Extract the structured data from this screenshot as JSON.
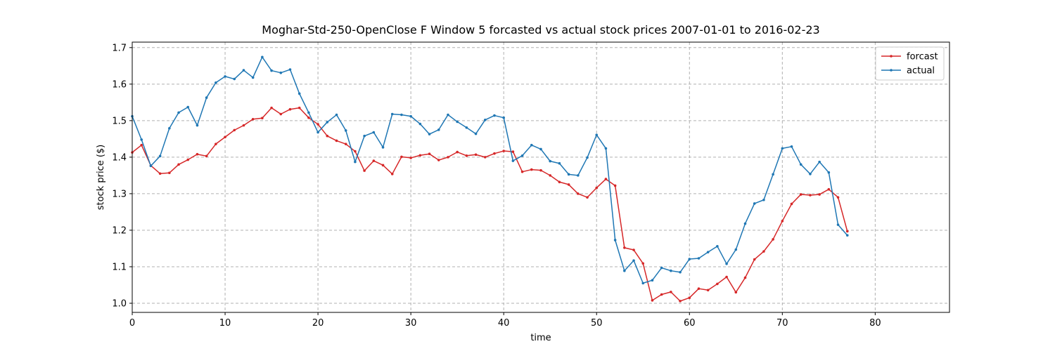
{
  "chart_data": {
    "type": "line",
    "title": "Moghar-Std-250-OpenClose F Window 5 forcasted vs actual stock prices 2007-01-01 to 2016-02-23",
    "xlabel": "time",
    "ylabel": "stock price ($)",
    "xlim": [
      0,
      88
    ],
    "ylim": [
      0.975,
      1.715
    ],
    "xticks": [
      0,
      10,
      20,
      30,
      40,
      50,
      60,
      70,
      80
    ],
    "yticks": [
      1.0,
      1.1,
      1.2,
      1.3,
      1.4,
      1.5,
      1.6,
      1.7
    ],
    "ytick_labels": [
      "1.0",
      "1.1",
      "1.2",
      "1.3",
      "1.4",
      "1.5",
      "1.6",
      "1.7"
    ],
    "grid": true,
    "legend_position": "top-right",
    "x": [
      0,
      1,
      2,
      3,
      4,
      5,
      6,
      7,
      8,
      9,
      10,
      11,
      12,
      13,
      14,
      15,
      16,
      17,
      18,
      19,
      20,
      21,
      22,
      23,
      24,
      25,
      26,
      27,
      28,
      29,
      30,
      31,
      32,
      33,
      34,
      35,
      36,
      37,
      38,
      39,
      40,
      41,
      42,
      43,
      44,
      45,
      46,
      47,
      48,
      49,
      50,
      51,
      52,
      53,
      54,
      55,
      56,
      57,
      58,
      59,
      60,
      61,
      62,
      63,
      64,
      65,
      66,
      67,
      68,
      69,
      70,
      71,
      72,
      73,
      74,
      75,
      76,
      77
    ],
    "series": [
      {
        "name": "forcast",
        "color": "#d62728",
        "values": [
          1.413,
          1.433,
          1.377,
          1.355,
          1.357,
          1.38,
          1.393,
          1.408,
          1.403,
          1.436,
          1.455,
          1.474,
          1.487,
          1.504,
          1.507,
          1.535,
          1.518,
          1.531,
          1.535,
          1.508,
          1.49,
          1.458,
          1.445,
          1.436,
          1.416,
          1.363,
          1.39,
          1.378,
          1.354,
          1.401,
          1.398,
          1.405,
          1.409,
          1.392,
          1.4,
          1.414,
          1.404,
          1.407,
          1.4,
          1.41,
          1.417,
          1.415,
          1.36,
          1.366,
          1.364,
          1.35,
          1.332,
          1.325,
          1.3,
          1.29,
          1.316,
          1.34,
          1.322,
          1.152,
          1.146,
          1.109,
          1.008,
          1.024,
          1.031,
          1.006,
          1.015,
          1.04,
          1.036,
          1.053,
          1.072,
          1.03,
          1.07,
          1.12,
          1.142,
          1.175,
          1.225,
          1.272,
          1.298,
          1.296,
          1.298,
          1.312,
          1.29,
          1.197
        ]
      },
      {
        "name": "actual",
        "color": "#1f77b4",
        "values": [
          1.512,
          1.448,
          1.376,
          1.403,
          1.479,
          1.522,
          1.537,
          1.487,
          1.563,
          1.604,
          1.621,
          1.614,
          1.638,
          1.618,
          1.674,
          1.637,
          1.631,
          1.64,
          1.574,
          1.522,
          1.468,
          1.496,
          1.516,
          1.473,
          1.387,
          1.458,
          1.468,
          1.427,
          1.518,
          1.516,
          1.512,
          1.491,
          1.463,
          1.475,
          1.516,
          1.497,
          1.481,
          1.464,
          1.502,
          1.514,
          1.508,
          1.39,
          1.404,
          1.433,
          1.422,
          1.389,
          1.383,
          1.353,
          1.35,
          1.399,
          1.461,
          1.424,
          1.173,
          1.089,
          1.117,
          1.055,
          1.063,
          1.097,
          1.089,
          1.085,
          1.121,
          1.123,
          1.14,
          1.156,
          1.108,
          1.147,
          1.218,
          1.273,
          1.283,
          1.353,
          1.424,
          1.429,
          1.38,
          1.354,
          1.387,
          1.358,
          1.215,
          1.186
        ]
      }
    ]
  }
}
